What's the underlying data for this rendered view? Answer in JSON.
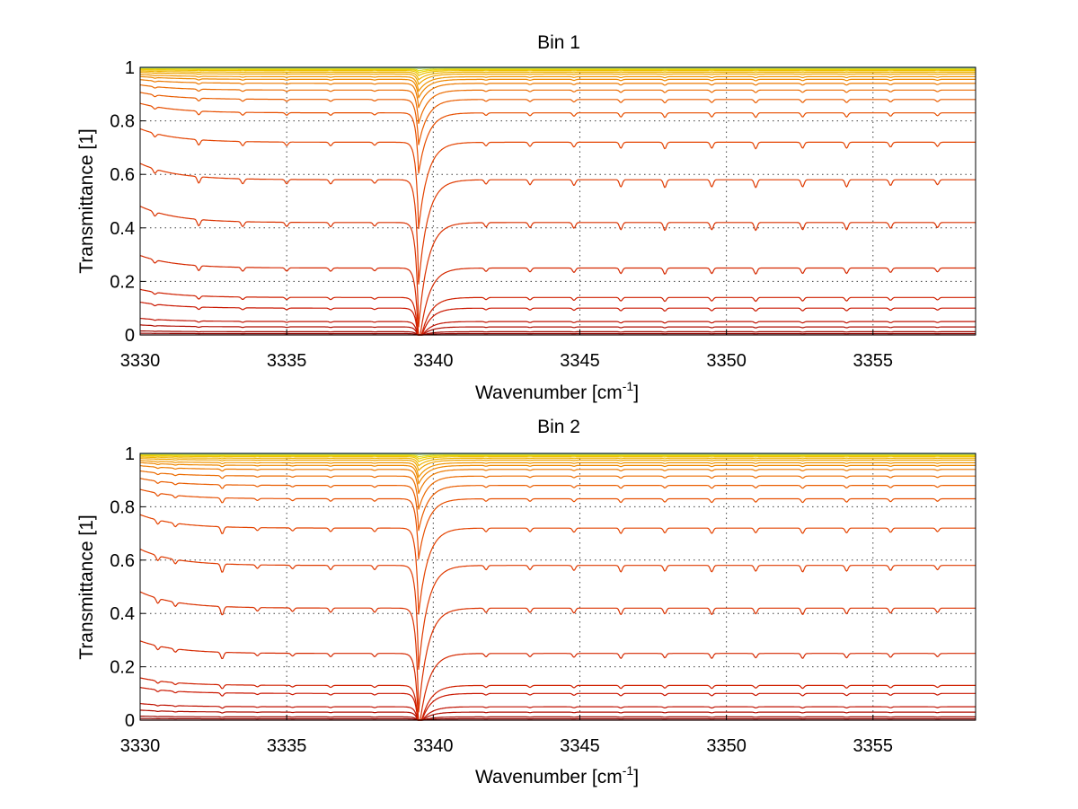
{
  "chart_data": [
    {
      "type": "line",
      "title": "Bin 1",
      "xlabel_main": "Wavenumber [cm",
      "xlabel_sup": "-1",
      "xlabel_end": "]",
      "ylabel": "Transmittance [1]",
      "xlim": [
        3330,
        3358.5
      ],
      "ylim": [
        0,
        1
      ],
      "xticks": [
        3330,
        3335,
        3340,
        3345,
        3350,
        3355
      ],
      "yticks": [
        0,
        0.2,
        0.4,
        0.6,
        0.8,
        1
      ],
      "ytick_labels": [
        "0",
        "0.2",
        "0.4",
        "0.6",
        "0.8",
        "1"
      ],
      "grid": true,
      "line_count": 24,
      "colormap": "jet (dark red → yellow → light blue)",
      "baseline_levels": [
        0.0,
        0.005,
        0.012,
        0.03,
        0.05,
        0.1,
        0.14,
        0.25,
        0.42,
        0.58,
        0.72,
        0.83,
        0.88,
        0.915,
        0.94,
        0.955,
        0.965,
        0.975,
        0.982,
        0.988,
        0.992,
        0.995,
        0.998,
        1.0
      ],
      "main_absorption_line": 3339.5,
      "absorption_lines": [
        {
          "x": 3330.5,
          "depth": 0.3
        },
        {
          "x": 3332.0,
          "depth": 0.45
        },
        {
          "x": 3333.5,
          "depth": 0.35
        },
        {
          "x": 3335.0,
          "depth": 0.3
        },
        {
          "x": 3336.5,
          "depth": 0.3
        },
        {
          "x": 3338.0,
          "depth": 0.25
        },
        {
          "x": 3339.5,
          "depth": 1.0
        },
        {
          "x": 3341.8,
          "depth": 0.3
        },
        {
          "x": 3343.3,
          "depth": 0.35
        },
        {
          "x": 3344.8,
          "depth": 0.4
        },
        {
          "x": 3346.4,
          "depth": 0.5
        },
        {
          "x": 3347.9,
          "depth": 0.55
        },
        {
          "x": 3349.5,
          "depth": 0.5
        },
        {
          "x": 3351.0,
          "depth": 0.55
        },
        {
          "x": 3352.6,
          "depth": 0.5
        },
        {
          "x": 3354.1,
          "depth": 0.5
        },
        {
          "x": 3355.6,
          "depth": 0.4
        },
        {
          "x": 3357.2,
          "depth": 0.35
        }
      ]
    },
    {
      "type": "line",
      "title": "Bin 2",
      "xlabel_main": "Wavenumber [cm",
      "xlabel_sup": "-1",
      "xlabel_end": "]",
      "ylabel": "Transmittance [1]",
      "xlim": [
        3330,
        3358.5
      ],
      "ylim": [
        0,
        1
      ],
      "xticks": [
        3330,
        3335,
        3340,
        3345,
        3350,
        3355
      ],
      "yticks": [
        0,
        0.2,
        0.4,
        0.6,
        0.8,
        1
      ],
      "ytick_labels": [
        "0",
        "0.2",
        "0.4",
        "0.6",
        "0.8",
        "1"
      ],
      "grid": true,
      "line_count": 24,
      "colormap": "jet (dark red → yellow → light blue)",
      "baseline_levels": [
        0.0,
        0.005,
        0.012,
        0.03,
        0.05,
        0.1,
        0.13,
        0.25,
        0.42,
        0.58,
        0.72,
        0.83,
        0.88,
        0.915,
        0.94,
        0.955,
        0.965,
        0.975,
        0.982,
        0.988,
        0.992,
        0.995,
        0.998,
        1.0
      ],
      "main_absorption_line": 3339.5,
      "absorption_lines": [
        {
          "x": 3330.6,
          "depth": 0.35
        },
        {
          "x": 3331.2,
          "depth": 0.3
        },
        {
          "x": 3332.8,
          "depth": 0.6
        },
        {
          "x": 3334.0,
          "depth": 0.25
        },
        {
          "x": 3335.2,
          "depth": 0.25
        },
        {
          "x": 3336.5,
          "depth": 0.3
        },
        {
          "x": 3338.0,
          "depth": 0.3
        },
        {
          "x": 3339.5,
          "depth": 1.0
        },
        {
          "x": 3341.8,
          "depth": 0.3
        },
        {
          "x": 3343.3,
          "depth": 0.3
        },
        {
          "x": 3344.8,
          "depth": 0.35
        },
        {
          "x": 3346.4,
          "depth": 0.45
        },
        {
          "x": 3347.9,
          "depth": 0.4
        },
        {
          "x": 3349.5,
          "depth": 0.45
        },
        {
          "x": 3351.0,
          "depth": 0.4
        },
        {
          "x": 3352.6,
          "depth": 0.45
        },
        {
          "x": 3354.1,
          "depth": 0.4
        },
        {
          "x": 3355.6,
          "depth": 0.35
        },
        {
          "x": 3357.2,
          "depth": 0.3
        }
      ]
    }
  ]
}
